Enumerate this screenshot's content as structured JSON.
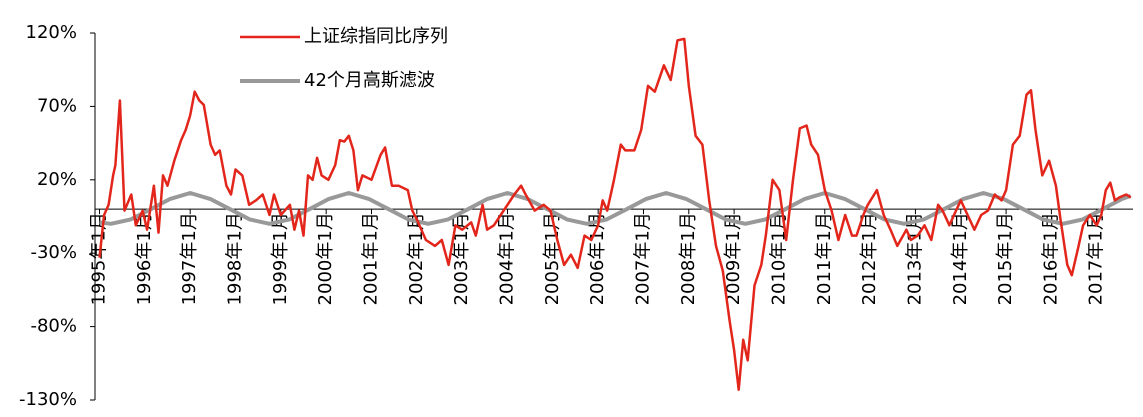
{
  "chart_data": {
    "type": "line",
    "ylim": [
      -130,
      120
    ],
    "yticks": [
      {
        "value": -130,
        "label": "-130%"
      },
      {
        "value": -80,
        "label": "-80%"
      },
      {
        "value": -30,
        "label": "-30%"
      },
      {
        "value": 20,
        "label": "20%"
      },
      {
        "value": 70,
        "label": "70%"
      },
      {
        "value": 120,
        "label": "120%"
      }
    ],
    "xlim": [
      1994.9,
      2017.8
    ],
    "xticks": [
      {
        "value": 1995,
        "label": "1995年1月"
      },
      {
        "value": 1996,
        "label": "1996年1月"
      },
      {
        "value": 1997,
        "label": "1997年1月"
      },
      {
        "value": 1998,
        "label": "1998年1月"
      },
      {
        "value": 1999,
        "label": "1999年1月"
      },
      {
        "value": 2000,
        "label": "2000年1月"
      },
      {
        "value": 2001,
        "label": "2001年1月"
      },
      {
        "value": 2002,
        "label": "2002年1月"
      },
      {
        "value": 2003,
        "label": "2003年1月"
      },
      {
        "value": 2004,
        "label": "2004年1月"
      },
      {
        "value": 2005,
        "label": "2005年1月"
      },
      {
        "value": 2006,
        "label": "2006年1月"
      },
      {
        "value": 2007,
        "label": "2007年1月"
      },
      {
        "value": 2008,
        "label": "2008年1月"
      },
      {
        "value": 2009,
        "label": "2009年1月"
      },
      {
        "value": 2010,
        "label": "2010年1月"
      },
      {
        "value": 2011,
        "label": "2011年1月"
      },
      {
        "value": 2012,
        "label": "2012年1月"
      },
      {
        "value": 2013,
        "label": "2013年1月"
      },
      {
        "value": 2014,
        "label": "2014年1月"
      },
      {
        "value": 2015,
        "label": "2015年1月"
      },
      {
        "value": 2016,
        "label": "2016年1月"
      },
      {
        "value": 2017,
        "label": "2017年1月"
      }
    ],
    "series": [
      {
        "name": "上证综指同比序列",
        "color": "#e3261b",
        "width": 2.5,
        "x": [
          1995.0,
          1995.1,
          1995.2,
          1995.3,
          1995.35,
          1995.45,
          1995.55,
          1995.7,
          1995.8,
          1995.95,
          1996.05,
          1996.2,
          1996.3,
          1996.4,
          1996.5,
          1996.65,
          1996.8,
          1996.9,
          1997.0,
          1997.1,
          1997.2,
          1997.3,
          1997.45,
          1997.55,
          1997.65,
          1997.8,
          1997.9,
          1998.0,
          1998.15,
          1998.3,
          1998.45,
          1998.6,
          1998.75,
          1998.85,
          1999.0,
          1999.2,
          1999.3,
          1999.4,
          1999.5,
          1999.6,
          1999.7,
          1999.8,
          1999.9,
          2000.05,
          2000.2,
          2000.3,
          2000.4,
          2000.5,
          2000.6,
          2000.7,
          2000.8,
          2001.0,
          2001.2,
          2001.3,
          2001.45,
          2001.6,
          2001.8,
          2001.9,
          2002.0,
          2002.2,
          2002.4,
          2002.55,
          2002.7,
          2002.85,
          2003.0,
          2003.2,
          2003.3,
          2003.45,
          2003.55,
          2003.7,
          2003.85,
          2004.0,
          2004.15,
          2004.3,
          2004.4,
          2004.6,
          2004.8,
          2004.95,
          2005.1,
          2005.25,
          2005.4,
          2005.55,
          2005.7,
          2005.85,
          2006.0,
          2006.1,
          2006.2,
          2006.35,
          2006.5,
          2006.6,
          2006.8,
          2006.95,
          2007.1,
          2007.25,
          2007.45,
          2007.6,
          2007.75,
          2007.9,
          2008.0,
          2008.15,
          2008.3,
          2008.45,
          2008.6,
          2008.75,
          2008.9,
          2009.0,
          2009.1,
          2009.2,
          2009.3,
          2009.45,
          2009.6,
          2009.7,
          2009.85,
          2010.0,
          2010.15,
          2010.3,
          2010.45,
          2010.6,
          2010.7,
          2010.85,
          2011.0,
          2011.15,
          2011.3,
          2011.45,
          2011.6,
          2011.7,
          2011.85,
          2011.95,
          2012.15,
          2012.3,
          2012.45,
          2012.6,
          2012.8,
          2012.9,
          2013.05,
          2013.2,
          2013.35,
          2013.5,
          2013.6,
          2013.75,
          2013.85,
          2014.0,
          2014.15,
          2014.3,
          2014.45,
          2014.6,
          2014.75,
          2014.9,
          2015.0,
          2015.15,
          2015.3,
          2015.45,
          2015.55,
          2015.65,
          2015.8,
          2015.95,
          2016.1,
          2016.2,
          2016.35,
          2016.45,
          2016.6,
          2016.7,
          2016.85,
          2017.0,
          2017.1,
          2017.2,
          2017.3,
          2017.4,
          2017.5,
          2017.65,
          2017.75
        ],
        "values": [
          -33,
          -4,
          3,
          23,
          30,
          74,
          -1,
          10,
          -11,
          -1,
          -14,
          16,
          -16,
          23,
          16,
          33,
          47,
          54,
          64,
          80,
          74,
          71,
          44,
          37,
          40,
          16,
          10,
          27,
          23,
          3,
          6,
          10,
          -4,
          10,
          -4,
          3,
          -14,
          -1,
          -18,
          23,
          20,
          35,
          23,
          20,
          30,
          47,
          46,
          50,
          40,
          13,
          23,
          20,
          37,
          42,
          16,
          16,
          13,
          -1,
          -7,
          -21,
          -25,
          -21,
          -38,
          -11,
          -14,
          -9,
          -18,
          3,
          -14,
          -11,
          -4,
          3,
          10,
          16,
          10,
          -1,
          3,
          -1,
          -21,
          -38,
          -31,
          -40,
          -18,
          -21,
          -11,
          6,
          -1,
          20,
          44,
          40,
          40,
          54,
          84,
          80,
          98,
          88,
          115,
          116,
          84,
          50,
          44,
          6,
          -25,
          -42,
          -76,
          -96,
          -123,
          -89,
          -103,
          -52,
          -38,
          -18,
          20,
          13,
          -21,
          20,
          55,
          57,
          44,
          37,
          13,
          -1,
          -21,
          -4,
          -18,
          -18,
          -4,
          3,
          13,
          -4,
          -14,
          -25,
          -14,
          -21,
          -18,
          -11,
          -21,
          3,
          -1,
          -11,
          -4,
          6,
          -4,
          -14,
          -4,
          -1,
          10,
          6,
          13,
          44,
          50,
          78,
          81,
          54,
          23,
          33,
          16,
          -7,
          -38,
          -45,
          -25,
          -11,
          -4,
          -11,
          -4,
          13,
          18,
          6,
          8,
          10,
          8
        ]
      },
      {
        "name": "42个月高斯滤波",
        "color": "#999999",
        "width": 4,
        "x": [
          1995.0,
          1995.25,
          1995.69,
          1996.13,
          1996.56,
          1997.0,
          1997.44,
          1997.88,
          1998.31,
          1998.75,
          1999.19,
          1999.63,
          2000.06,
          2000.5,
          2000.94,
          2001.38,
          2001.81,
          2002.25,
          2002.69,
          2003.13,
          2003.56,
          2004.0,
          2004.44,
          2004.88,
          2005.31,
          2005.75,
          2006.19,
          2006.63,
          2007.06,
          2007.5,
          2007.94,
          2008.38,
          2008.81,
          2009.25,
          2009.69,
          2010.13,
          2010.56,
          2011.0,
          2011.44,
          2011.88,
          2012.31,
          2012.75,
          2013.19,
          2013.63,
          2014.06,
          2014.5,
          2014.94,
          2015.38,
          2015.81,
          2016.25,
          2016.69,
          2017.13,
          2017.56,
          2017.75
        ],
        "values": [
          -9,
          -10,
          -7,
          0,
          7,
          11,
          7,
          0,
          -7,
          -10,
          -7,
          0,
          7,
          11,
          7,
          0,
          -7,
          -10,
          -7,
          0,
          7,
          11,
          7,
          0,
          -7,
          -10,
          -7,
          0,
          7,
          11,
          7,
          0,
          -7,
          -10,
          -7,
          0,
          7,
          11,
          7,
          0,
          -7,
          -10,
          -7,
          0,
          7,
          11,
          7,
          0,
          -7,
          -10,
          -7,
          0,
          7,
          9
        ]
      }
    ]
  }
}
